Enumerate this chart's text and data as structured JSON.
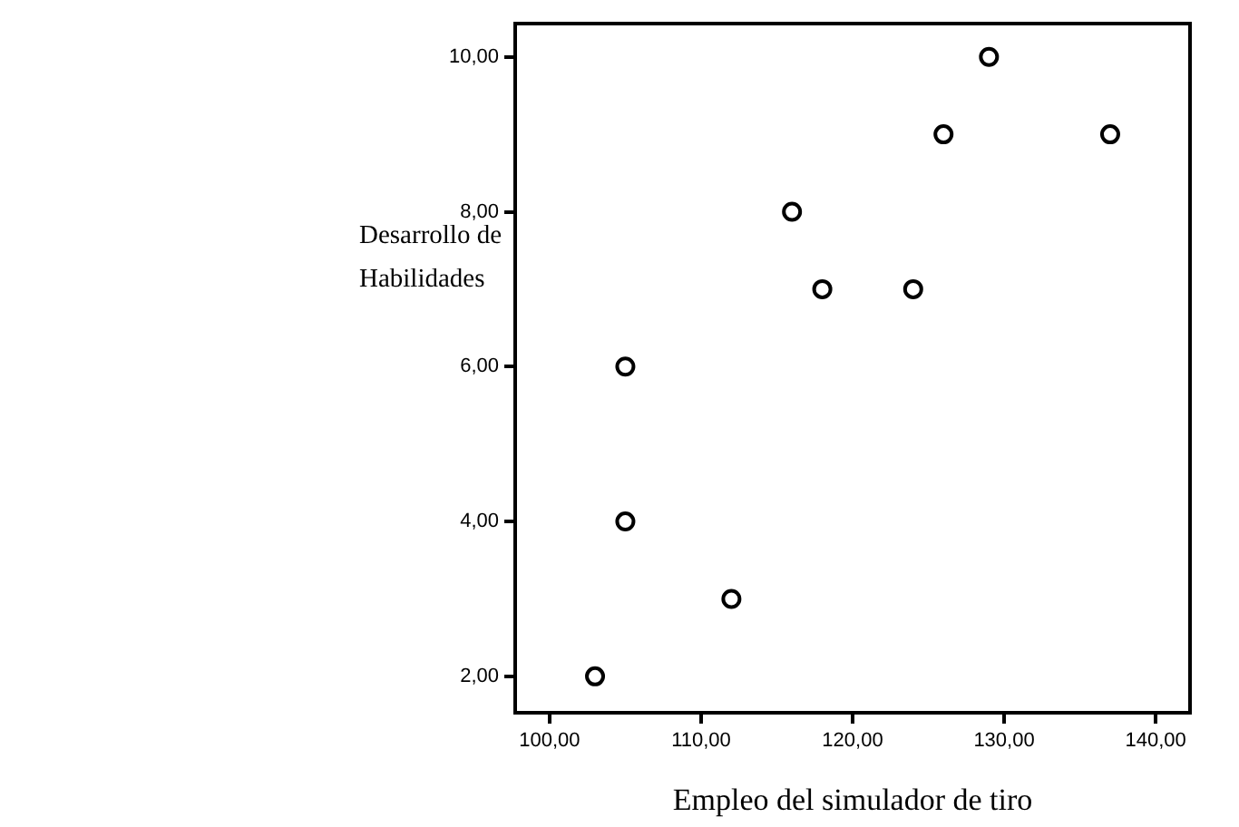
{
  "chart_data": {
    "type": "scatter",
    "xlabel": "Empleo del simulador de tiro",
    "ylabel": "Desarrollo de Habilidades",
    "x": [
      103,
      105,
      105,
      112,
      116,
      118,
      124,
      126,
      129,
      137
    ],
    "series": [
      {
        "color": "#000000",
        "values": [
          2,
          6,
          4,
          3,
          8,
          7,
          7,
          9,
          10,
          9
        ]
      }
    ],
    "xlim": [
      97.73,
      142.27
    ],
    "ylim": [
      1.53,
      10.43
    ],
    "xticks": [
      {
        "value": 100,
        "label": "100,00"
      },
      {
        "value": 110,
        "label": "110,00"
      },
      {
        "value": 120,
        "label": "120,00"
      },
      {
        "value": 130,
        "label": "130,00"
      },
      {
        "value": 140,
        "label": "140,00"
      }
    ],
    "yticks": [
      {
        "value": 2,
        "label": "2,00"
      },
      {
        "value": 4,
        "label": "4,00"
      },
      {
        "value": 6,
        "label": "6,00"
      },
      {
        "value": 8,
        "label": "8,00"
      },
      {
        "value": 10,
        "label": "10,00"
      }
    ],
    "grid": false,
    "legend": false,
    "marker": "circle"
  }
}
